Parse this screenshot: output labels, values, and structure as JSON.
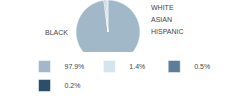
{
  "chart_data": {
    "type": "pie",
    "categories": [
      "BLACK",
      "WHITE",
      "ASIAN",
      "HISPANIC"
    ],
    "values": [
      97.9,
      1.4,
      0.5,
      0.2
    ],
    "value_labels": [
      "97.9%",
      "1.4%",
      "0.5%",
      "0.2%"
    ],
    "colors": [
      "#a0b8c8",
      "#d4e5ee",
      "#5b7f9b",
      "#2b4f6b"
    ],
    "legend": "bottom"
  }
}
